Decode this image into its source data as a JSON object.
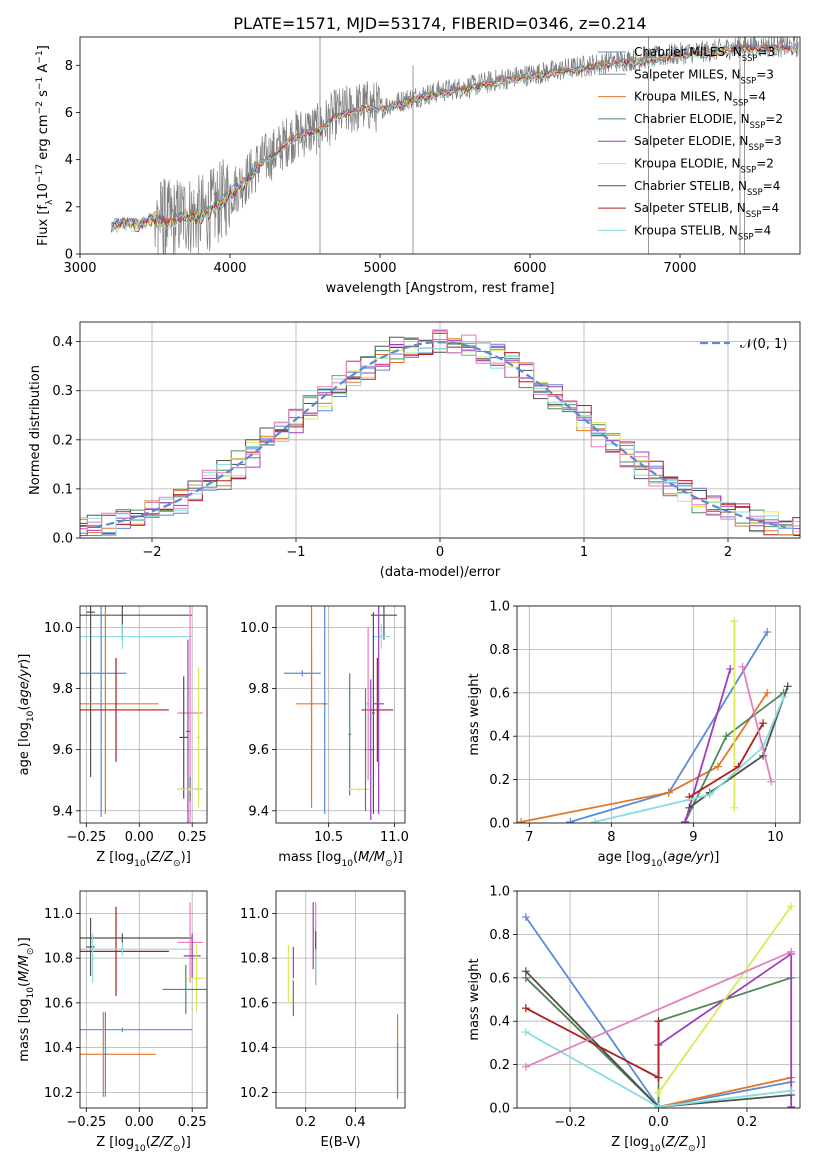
{
  "figure_title": "PLATE=1571, MJD=53174, FIBERID=0346, z=0.214",
  "colors": {
    "chabrier_miles": "#5b8bd8",
    "salpeter_miles": "#8a8a8a",
    "kroupa_miles": "#e2782a",
    "chabrier_elodie": "#4f8a5b",
    "salpeter_elodie": "#a03cc0",
    "kroupa_elodie": "#d9ea5a",
    "chabrier_stelib": "#505050",
    "salpeter_stelib": "#b01e1e",
    "kroupa_stelib": "#88dde0",
    "pink": "#e57fbf",
    "normal_curve": "#5b8bd8"
  },
  "chart_data": [
    {
      "id": "spectrum",
      "type": "line",
      "title": "PLATE=1571, MJD=53174, FIBERID=0346, z=0.214",
      "xlabel": "wavelength [Angstrom, rest frame]",
      "ylabel": "Flux [f_λ10^-17 erg cm^-2 s^-1 A^-1]",
      "xlim": [
        3000,
        7800
      ],
      "ylim": [
        0,
        9.2
      ],
      "xticks": [
        "3000",
        "4000",
        "5000",
        "6000",
        "7000"
      ],
      "yticks": [
        "0",
        "2",
        "4",
        "6",
        "8"
      ],
      "legend_position": "top-right",
      "legend": [
        "Chabrier MILES, N_SSP=3",
        "Salpeter MILES, N_SSP=3",
        "Kroupa MILES, N_SSP=4",
        "Chabrier ELODIE, N_SSP=2",
        "Salpeter ELODIE, N_SSP=3",
        "Kroupa ELODIE, N_SSP=2",
        "Chabrier STELIB, N_SSP=4",
        "Salpeter STELIB, N_SSP=4",
        "Kroupa STELIB, N_SSP=4"
      ],
      "model_continuum": {
        "x": [
          3210,
          3300,
          3400,
          3500,
          3600,
          3700,
          3800,
          3900,
          4000,
          4100,
          4200,
          4300,
          4400,
          4500,
          4600,
          4700,
          4800,
          4900,
          5000,
          5200,
          5400,
          5600,
          5800,
          6000,
          6200,
          6400,
          6600,
          6800,
          7000,
          7200,
          7400
        ],
        "y": [
          1.2,
          1.45,
          1.3,
          1.6,
          1.4,
          1.7,
          1.6,
          2.0,
          2.6,
          3.1,
          3.9,
          4.3,
          4.9,
          5.2,
          5.3,
          5.9,
          6.1,
          6.3,
          6.2,
          6.6,
          6.9,
          7.1,
          7.4,
          7.6,
          7.8,
          8.0,
          8.2,
          8.3,
          8.5,
          8.6,
          8.8
        ]
      }
    },
    {
      "id": "residuals",
      "type": "histogram",
      "xlabel": "(data-model)/error",
      "ylabel": "Normed distribution",
      "xlim": [
        -2.5,
        2.5
      ],
      "ylim": [
        0,
        0.44
      ],
      "xticks": [
        "−2",
        "−1",
        "0",
        "1",
        "2"
      ],
      "yticks": [
        "0.0",
        "0.1",
        "0.2",
        "0.3",
        "0.4"
      ],
      "legend": [
        "𝒩(0, 1)"
      ],
      "legend_position": "top-right",
      "bin_width": 0.1
    },
    {
      "id": "age_vs_Z",
      "type": "errorbar",
      "xlabel": "Z [log10(Z/Z⊙)]",
      "ylabel": "age [log10(age/yr)]",
      "xlim": [
        -0.28,
        0.32
      ],
      "ylim": [
        9.36,
        10.07
      ],
      "xticks": [
        "−0.25",
        "0.00",
        "0.25"
      ],
      "yticks": [
        "9.4",
        "9.6",
        "9.8",
        "10.0"
      ],
      "points": [
        {
          "x": -0.08,
          "xerr": 0.33,
          "y": 10.04,
          "yerr": 0.08,
          "color": "#505050"
        },
        {
          "x": -0.08,
          "xerr": 0.33,
          "y": 9.97,
          "yerr": 0.04,
          "color": "#88dde0"
        },
        {
          "x": -0.23,
          "xerr": 0.02,
          "y": 10.05,
          "yerr": 0.54,
          "color": "#505050"
        },
        {
          "x": -0.18,
          "xerr": 0.12,
          "y": 9.85,
          "yerr": 0.47,
          "color": "#5b8bd8"
        },
        {
          "x": -0.16,
          "xerr": 0.25,
          "y": 9.75,
          "yerr": 0.36,
          "color": "#e2782a"
        },
        {
          "x": -0.11,
          "xerr": 0.25,
          "y": 9.73,
          "yerr": 0.17,
          "color": "#b01e1e"
        },
        {
          "x": 0.24,
          "xerr": 0.06,
          "y": 9.72,
          "yerr": 0.52,
          "color": "#e57fbf"
        },
        {
          "x": 0.21,
          "xerr": 0.02,
          "y": 9.64,
          "yerr": 0.2,
          "color": "#505050"
        },
        {
          "x": 0.23,
          "xerr": 0.01,
          "y": 9.66,
          "yerr": 0.3,
          "color": "#a03cc0"
        },
        {
          "x": 0.28,
          "xerr": 0.01,
          "y": 9.64,
          "yerr": 0.23,
          "color": "#d9ea5a"
        },
        {
          "x": 0.24,
          "xerr": 0.06,
          "y": 9.47,
          "yerr": 0.04,
          "color": "#4f8a5b"
        },
        {
          "x": 0.24,
          "xerr": 0.06,
          "y": 9.47,
          "yerr": 0.005,
          "color": "#d9ea5a"
        }
      ]
    },
    {
      "id": "age_vs_mass",
      "type": "errorbar",
      "xlabel": "mass [log10(M/M⊙)]",
      "ylabel": "",
      "xlim": [
        10.1,
        11.08
      ],
      "ylim": [
        9.36,
        10.07
      ],
      "xticks": [
        "10.5",
        "11.0"
      ],
      "yticks": [
        "9.4",
        "9.6",
        "9.8",
        "10.0"
      ],
      "points": [
        {
          "x": 10.92,
          "xerr": 0.1,
          "y": 10.04,
          "yerr": 0.08,
          "color": "#505050"
        },
        {
          "x": 10.9,
          "xerr": 0.07,
          "y": 9.97,
          "yerr": 0.04,
          "color": "#88dde0"
        },
        {
          "x": 10.3,
          "xerr": 0.14,
          "y": 9.85,
          "yerr": 0.01,
          "color": "#5b8bd8"
        },
        {
          "x": 10.47,
          "xerr": 0.02,
          "y": 9.75,
          "yerr": 0.36,
          "color": "#5b8bd8"
        },
        {
          "x": 10.37,
          "xerr": 0.12,
          "y": 9.75,
          "yerr": 0.17,
          "color": "#e2782a"
        },
        {
          "x": 10.37,
          "xerr": 0.01,
          "y": 9.75,
          "yerr": 0.34,
          "color": "#e2782a"
        },
        {
          "x": 10.87,
          "xerr": 0.12,
          "y": 9.73,
          "yerr": 0.17,
          "color": "#b01e1e"
        },
        {
          "x": 10.84,
          "xerr": 0.01,
          "y": 9.72,
          "yerr": 0.33,
          "color": "#505050"
        },
        {
          "x": 10.82,
          "xerr": 0.02,
          "y": 9.6,
          "yerr": 0.23,
          "color": "#a03cc0"
        },
        {
          "x": 10.88,
          "xerr": 0.04,
          "y": 9.75,
          "yerr": 0.36,
          "color": "#a03cc0"
        },
        {
          "x": 10.8,
          "xerr": 0.01,
          "y": 9.75,
          "yerr": 0.25,
          "color": "#e57fbf"
        },
        {
          "x": 10.66,
          "xerr": 0.01,
          "y": 9.65,
          "yerr": 0.2,
          "color": "#4f8a5b"
        },
        {
          "x": 10.73,
          "xerr": 0.08,
          "y": 9.47,
          "yerr": 0.004,
          "color": "#d9ea5a"
        },
        {
          "x": 10.78,
          "xerr": 0.01,
          "y": 9.6,
          "yerr": 0.2,
          "color": "#4f8a5b"
        }
      ]
    },
    {
      "id": "weight_vs_age",
      "type": "line",
      "xlabel": "age [log10(age/yr)]",
      "ylabel": "mass weight",
      "xlim": [
        6.85,
        10.3
      ],
      "ylim": [
        0,
        1
      ],
      "xticks": [
        "7",
        "8",
        "9",
        "10"
      ],
      "yticks": [
        "0.0",
        "0.2",
        "0.4",
        "0.6",
        "0.8",
        "1.0"
      ],
      "series": [
        {
          "color": "#5b8bd8",
          "x": [
            7.5,
            8.7,
            9.9
          ],
          "y": [
            0.005,
            0.14,
            0.88
          ]
        },
        {
          "color": "#e2782a",
          "x": [
            6.9,
            8.7,
            9.3,
            9.9
          ],
          "y": [
            0.005,
            0.14,
            0.26,
            0.6
          ]
        },
        {
          "color": "#4f8a5b",
          "x": [
            8.9,
            9.4,
            10.1
          ],
          "y": [
            0.005,
            0.4,
            0.6
          ]
        },
        {
          "color": "#a03cc0",
          "x": [
            8.9,
            9.45
          ],
          "y": [
            0.005,
            0.71
          ]
        },
        {
          "color": "#d9ea5a",
          "x": [
            9.5,
            9.5
          ],
          "y": [
            0.07,
            0.93
          ]
        },
        {
          "color": "#505050",
          "x": [
            8.95,
            9.2,
            9.85,
            10.15
          ],
          "y": [
            0.07,
            0.14,
            0.31,
            0.63
          ]
        },
        {
          "color": "#b01e1e",
          "x": [
            8.95,
            9.55,
            9.85
          ],
          "y": [
            0.12,
            0.26,
            0.46
          ]
        },
        {
          "color": "#88dde0",
          "x": [
            7.8,
            9.2,
            9.85,
            10.1
          ],
          "y": [
            0.005,
            0.13,
            0.35,
            0.58
          ]
        },
        {
          "color": "#e57fbf",
          "x": [
            9.6,
            9.95
          ],
          "y": [
            0.72,
            0.19
          ]
        }
      ]
    },
    {
      "id": "mass_vs_Z",
      "type": "errorbar",
      "xlabel": "Z [log10(Z/Z⊙)]",
      "ylabel": "mass [log10(M/M⊙)]",
      "xlim": [
        -0.28,
        0.32
      ],
      "ylim": [
        10.13,
        11.1
      ],
      "xticks": [
        "−0.25",
        "0.00",
        "0.25"
      ],
      "yticks": [
        "10.2",
        "10.4",
        "10.6",
        "10.8",
        "11.0"
      ],
      "points": [
        {
          "x": -0.23,
          "xerr": 0.02,
          "y": 10.85,
          "yerr": 0.13,
          "color": "#505050"
        },
        {
          "x": -0.08,
          "xerr": 0.33,
          "y": 10.89,
          "yerr": 0.02,
          "color": "#505050"
        },
        {
          "x": -0.11,
          "xerr": 0.25,
          "y": 10.83,
          "yerr": 0.2,
          "color": "#b01e1e"
        },
        {
          "x": -0.08,
          "xerr": 0.33,
          "y": 10.84,
          "yerr": 0.03,
          "color": "#88dde0"
        },
        {
          "x": -0.22,
          "xerr": 0.01,
          "y": 10.8,
          "yerr": 0.11,
          "color": "#88dde0"
        },
        {
          "x": -0.08,
          "xerr": 0.33,
          "y": 10.48,
          "yerr": 0.01,
          "color": "#5b8bd8"
        },
        {
          "x": -0.17,
          "xerr": 0.25,
          "y": 10.37,
          "yerr": 0.19,
          "color": "#e2782a"
        },
        {
          "x": -0.16,
          "xerr": 0.01,
          "y": 10.37,
          "yerr": 0.19,
          "color": "#5b8bd8"
        },
        {
          "x": 0.24,
          "xerr": 0.06,
          "y": 10.87,
          "yerr": 0.18,
          "color": "#e57fbf"
        },
        {
          "x": 0.25,
          "xerr": 0.04,
          "y": 10.81,
          "yerr": 0.1,
          "color": "#a03cc0"
        },
        {
          "x": 0.27,
          "xerr": 0.04,
          "y": 10.71,
          "yerr": 0.15,
          "color": "#d9ea5a"
        },
        {
          "x": 0.22,
          "xerr": 0.11,
          "y": 10.66,
          "yerr": 0.11,
          "color": "#4f8a5b"
        }
      ]
    },
    {
      "id": "mass_vs_ebv",
      "type": "errorbar",
      "xlabel": "E(B-V)",
      "ylabel": "",
      "xlim": [
        0.08,
        0.6
      ],
      "ylim": [
        10.13,
        11.1
      ],
      "xticks": [
        "0.2",
        "0.4"
      ],
      "yticks": [
        "10.2",
        "10.4",
        "10.6",
        "10.8",
        "11.0"
      ],
      "points": [
        {
          "x": 0.13,
          "xerr": 0.0,
          "y": 10.73,
          "yerr": 0.13,
          "color": "#d9ea5a"
        },
        {
          "x": 0.15,
          "xerr": 0.0,
          "y": 10.78,
          "yerr": 0.07,
          "color": "#a03cc0"
        },
        {
          "x": 0.15,
          "xerr": 0.0,
          "y": 10.62,
          "yerr": 0.08,
          "color": "#4f8a5b"
        },
        {
          "x": 0.23,
          "xerr": 0.0,
          "y": 10.9,
          "yerr": 0.15,
          "color": "#a03cc0"
        },
        {
          "x": 0.24,
          "xerr": 0.0,
          "y": 10.9,
          "yerr": 0.15,
          "color": "#e57fbf"
        },
        {
          "x": 0.24,
          "xerr": 0.0,
          "y": 10.8,
          "yerr": 0.12,
          "color": "#505050"
        },
        {
          "x": 0.24,
          "xerr": 0.0,
          "y": 10.76,
          "yerr": 0.08,
          "color": "#88dde0"
        },
        {
          "x": 0.57,
          "xerr": 0.0,
          "y": 10.36,
          "yerr": 0.19,
          "color": "#e2782a"
        },
        {
          "x": 0.57,
          "xerr": 0.0,
          "y": 10.3,
          "yerr": 0.12,
          "color": "#5b8bd8"
        }
      ]
    },
    {
      "id": "weight_vs_Z",
      "type": "line",
      "xlabel": "Z [log10(Z/Z⊙)]",
      "ylabel": "mass weight",
      "xlim": [
        -0.32,
        0.32
      ],
      "ylim": [
        0,
        1
      ],
      "xticks": [
        "−0.2",
        "0.0",
        "0.2"
      ],
      "yticks": [
        "0.0",
        "0.2",
        "0.4",
        "0.6",
        "0.8",
        "1.0"
      ],
      "series": [
        {
          "color": "#5b8bd8",
          "x": [
            -0.3,
            0.0,
            0.3
          ],
          "y": [
            0.88,
            0.005,
            0.12
          ]
        },
        {
          "color": "#e2782a",
          "x": [
            -0.3,
            0.0,
            0.3
          ],
          "y": [
            0.6,
            0.005,
            0.14
          ]
        },
        {
          "color": "#4f8a5b",
          "x": [
            -0.3,
            0.0,
            0.0,
            0.3
          ],
          "y": [
            0.6,
            0.005,
            0.4,
            0.6
          ]
        },
        {
          "color": "#a03cc0",
          "x": [
            0.0,
            0.3,
            0.3
          ],
          "y": [
            0.29,
            0.71,
            0.005
          ]
        },
        {
          "color": "#d9ea5a",
          "x": [
            0.0,
            0.3
          ],
          "y": [
            0.07,
            0.93
          ]
        },
        {
          "color": "#505050",
          "x": [
            -0.3,
            0.0,
            0.3
          ],
          "y": [
            0.63,
            0.005,
            0.06
          ]
        },
        {
          "color": "#b01e1e",
          "x": [
            -0.3,
            0.0,
            0.0
          ],
          "y": [
            0.46,
            0.14,
            0.4
          ]
        },
        {
          "color": "#88dde0",
          "x": [
            -0.3,
            0.0,
            0.3
          ],
          "y": [
            0.35,
            0.005,
            0.08
          ]
        },
        {
          "color": "#e57fbf",
          "x": [
            -0.3,
            0.3
          ],
          "y": [
            0.19,
            0.72
          ]
        }
      ]
    }
  ]
}
